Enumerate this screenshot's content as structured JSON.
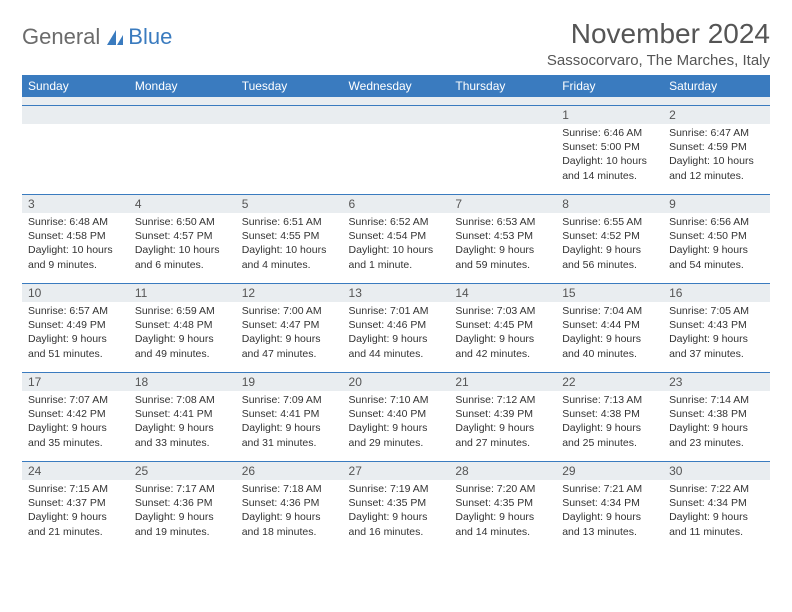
{
  "logo": {
    "text_gray": "General",
    "text_blue": "Blue"
  },
  "header": {
    "month_title": "November 2024",
    "location": "Sassocorvaro, The Marches, Italy"
  },
  "colors": {
    "header_bg": "#3a7bbf",
    "header_text": "#ffffff",
    "daynum_row_bg": "#e9edf0",
    "row_divider": "#3a7bbf",
    "page_bg": "#ffffff",
    "body_text": "#333333",
    "title_text": "#555555"
  },
  "weekdays": [
    "Sunday",
    "Monday",
    "Tuesday",
    "Wednesday",
    "Thursday",
    "Friday",
    "Saturday"
  ],
  "weeks": [
    [
      null,
      null,
      null,
      null,
      null,
      {
        "n": "1",
        "sr": "6:46 AM",
        "ss": "5:00 PM",
        "dl": "10 hours and 14 minutes."
      },
      {
        "n": "2",
        "sr": "6:47 AM",
        "ss": "4:59 PM",
        "dl": "10 hours and 12 minutes."
      }
    ],
    [
      {
        "n": "3",
        "sr": "6:48 AM",
        "ss": "4:58 PM",
        "dl": "10 hours and 9 minutes."
      },
      {
        "n": "4",
        "sr": "6:50 AM",
        "ss": "4:57 PM",
        "dl": "10 hours and 6 minutes."
      },
      {
        "n": "5",
        "sr": "6:51 AM",
        "ss": "4:55 PM",
        "dl": "10 hours and 4 minutes."
      },
      {
        "n": "6",
        "sr": "6:52 AM",
        "ss": "4:54 PM",
        "dl": "10 hours and 1 minute."
      },
      {
        "n": "7",
        "sr": "6:53 AM",
        "ss": "4:53 PM",
        "dl": "9 hours and 59 minutes."
      },
      {
        "n": "8",
        "sr": "6:55 AM",
        "ss": "4:52 PM",
        "dl": "9 hours and 56 minutes."
      },
      {
        "n": "9",
        "sr": "6:56 AM",
        "ss": "4:50 PM",
        "dl": "9 hours and 54 minutes."
      }
    ],
    [
      {
        "n": "10",
        "sr": "6:57 AM",
        "ss": "4:49 PM",
        "dl": "9 hours and 51 minutes."
      },
      {
        "n": "11",
        "sr": "6:59 AM",
        "ss": "4:48 PM",
        "dl": "9 hours and 49 minutes."
      },
      {
        "n": "12",
        "sr": "7:00 AM",
        "ss": "4:47 PM",
        "dl": "9 hours and 47 minutes."
      },
      {
        "n": "13",
        "sr": "7:01 AM",
        "ss": "4:46 PM",
        "dl": "9 hours and 44 minutes."
      },
      {
        "n": "14",
        "sr": "7:03 AM",
        "ss": "4:45 PM",
        "dl": "9 hours and 42 minutes."
      },
      {
        "n": "15",
        "sr": "7:04 AM",
        "ss": "4:44 PM",
        "dl": "9 hours and 40 minutes."
      },
      {
        "n": "16",
        "sr": "7:05 AM",
        "ss": "4:43 PM",
        "dl": "9 hours and 37 minutes."
      }
    ],
    [
      {
        "n": "17",
        "sr": "7:07 AM",
        "ss": "4:42 PM",
        "dl": "9 hours and 35 minutes."
      },
      {
        "n": "18",
        "sr": "7:08 AM",
        "ss": "4:41 PM",
        "dl": "9 hours and 33 minutes."
      },
      {
        "n": "19",
        "sr": "7:09 AM",
        "ss": "4:41 PM",
        "dl": "9 hours and 31 minutes."
      },
      {
        "n": "20",
        "sr": "7:10 AM",
        "ss": "4:40 PM",
        "dl": "9 hours and 29 minutes."
      },
      {
        "n": "21",
        "sr": "7:12 AM",
        "ss": "4:39 PM",
        "dl": "9 hours and 27 minutes."
      },
      {
        "n": "22",
        "sr": "7:13 AM",
        "ss": "4:38 PM",
        "dl": "9 hours and 25 minutes."
      },
      {
        "n": "23",
        "sr": "7:14 AM",
        "ss": "4:38 PM",
        "dl": "9 hours and 23 minutes."
      }
    ],
    [
      {
        "n": "24",
        "sr": "7:15 AM",
        "ss": "4:37 PM",
        "dl": "9 hours and 21 minutes."
      },
      {
        "n": "25",
        "sr": "7:17 AM",
        "ss": "4:36 PM",
        "dl": "9 hours and 19 minutes."
      },
      {
        "n": "26",
        "sr": "7:18 AM",
        "ss": "4:36 PM",
        "dl": "9 hours and 18 minutes."
      },
      {
        "n": "27",
        "sr": "7:19 AM",
        "ss": "4:35 PM",
        "dl": "9 hours and 16 minutes."
      },
      {
        "n": "28",
        "sr": "7:20 AM",
        "ss": "4:35 PM",
        "dl": "9 hours and 14 minutes."
      },
      {
        "n": "29",
        "sr": "7:21 AM",
        "ss": "4:34 PM",
        "dl": "9 hours and 13 minutes."
      },
      {
        "n": "30",
        "sr": "7:22 AM",
        "ss": "4:34 PM",
        "dl": "9 hours and 11 minutes."
      }
    ]
  ],
  "labels": {
    "sunrise": "Sunrise:",
    "sunset": "Sunset:",
    "daylight": "Daylight:"
  }
}
